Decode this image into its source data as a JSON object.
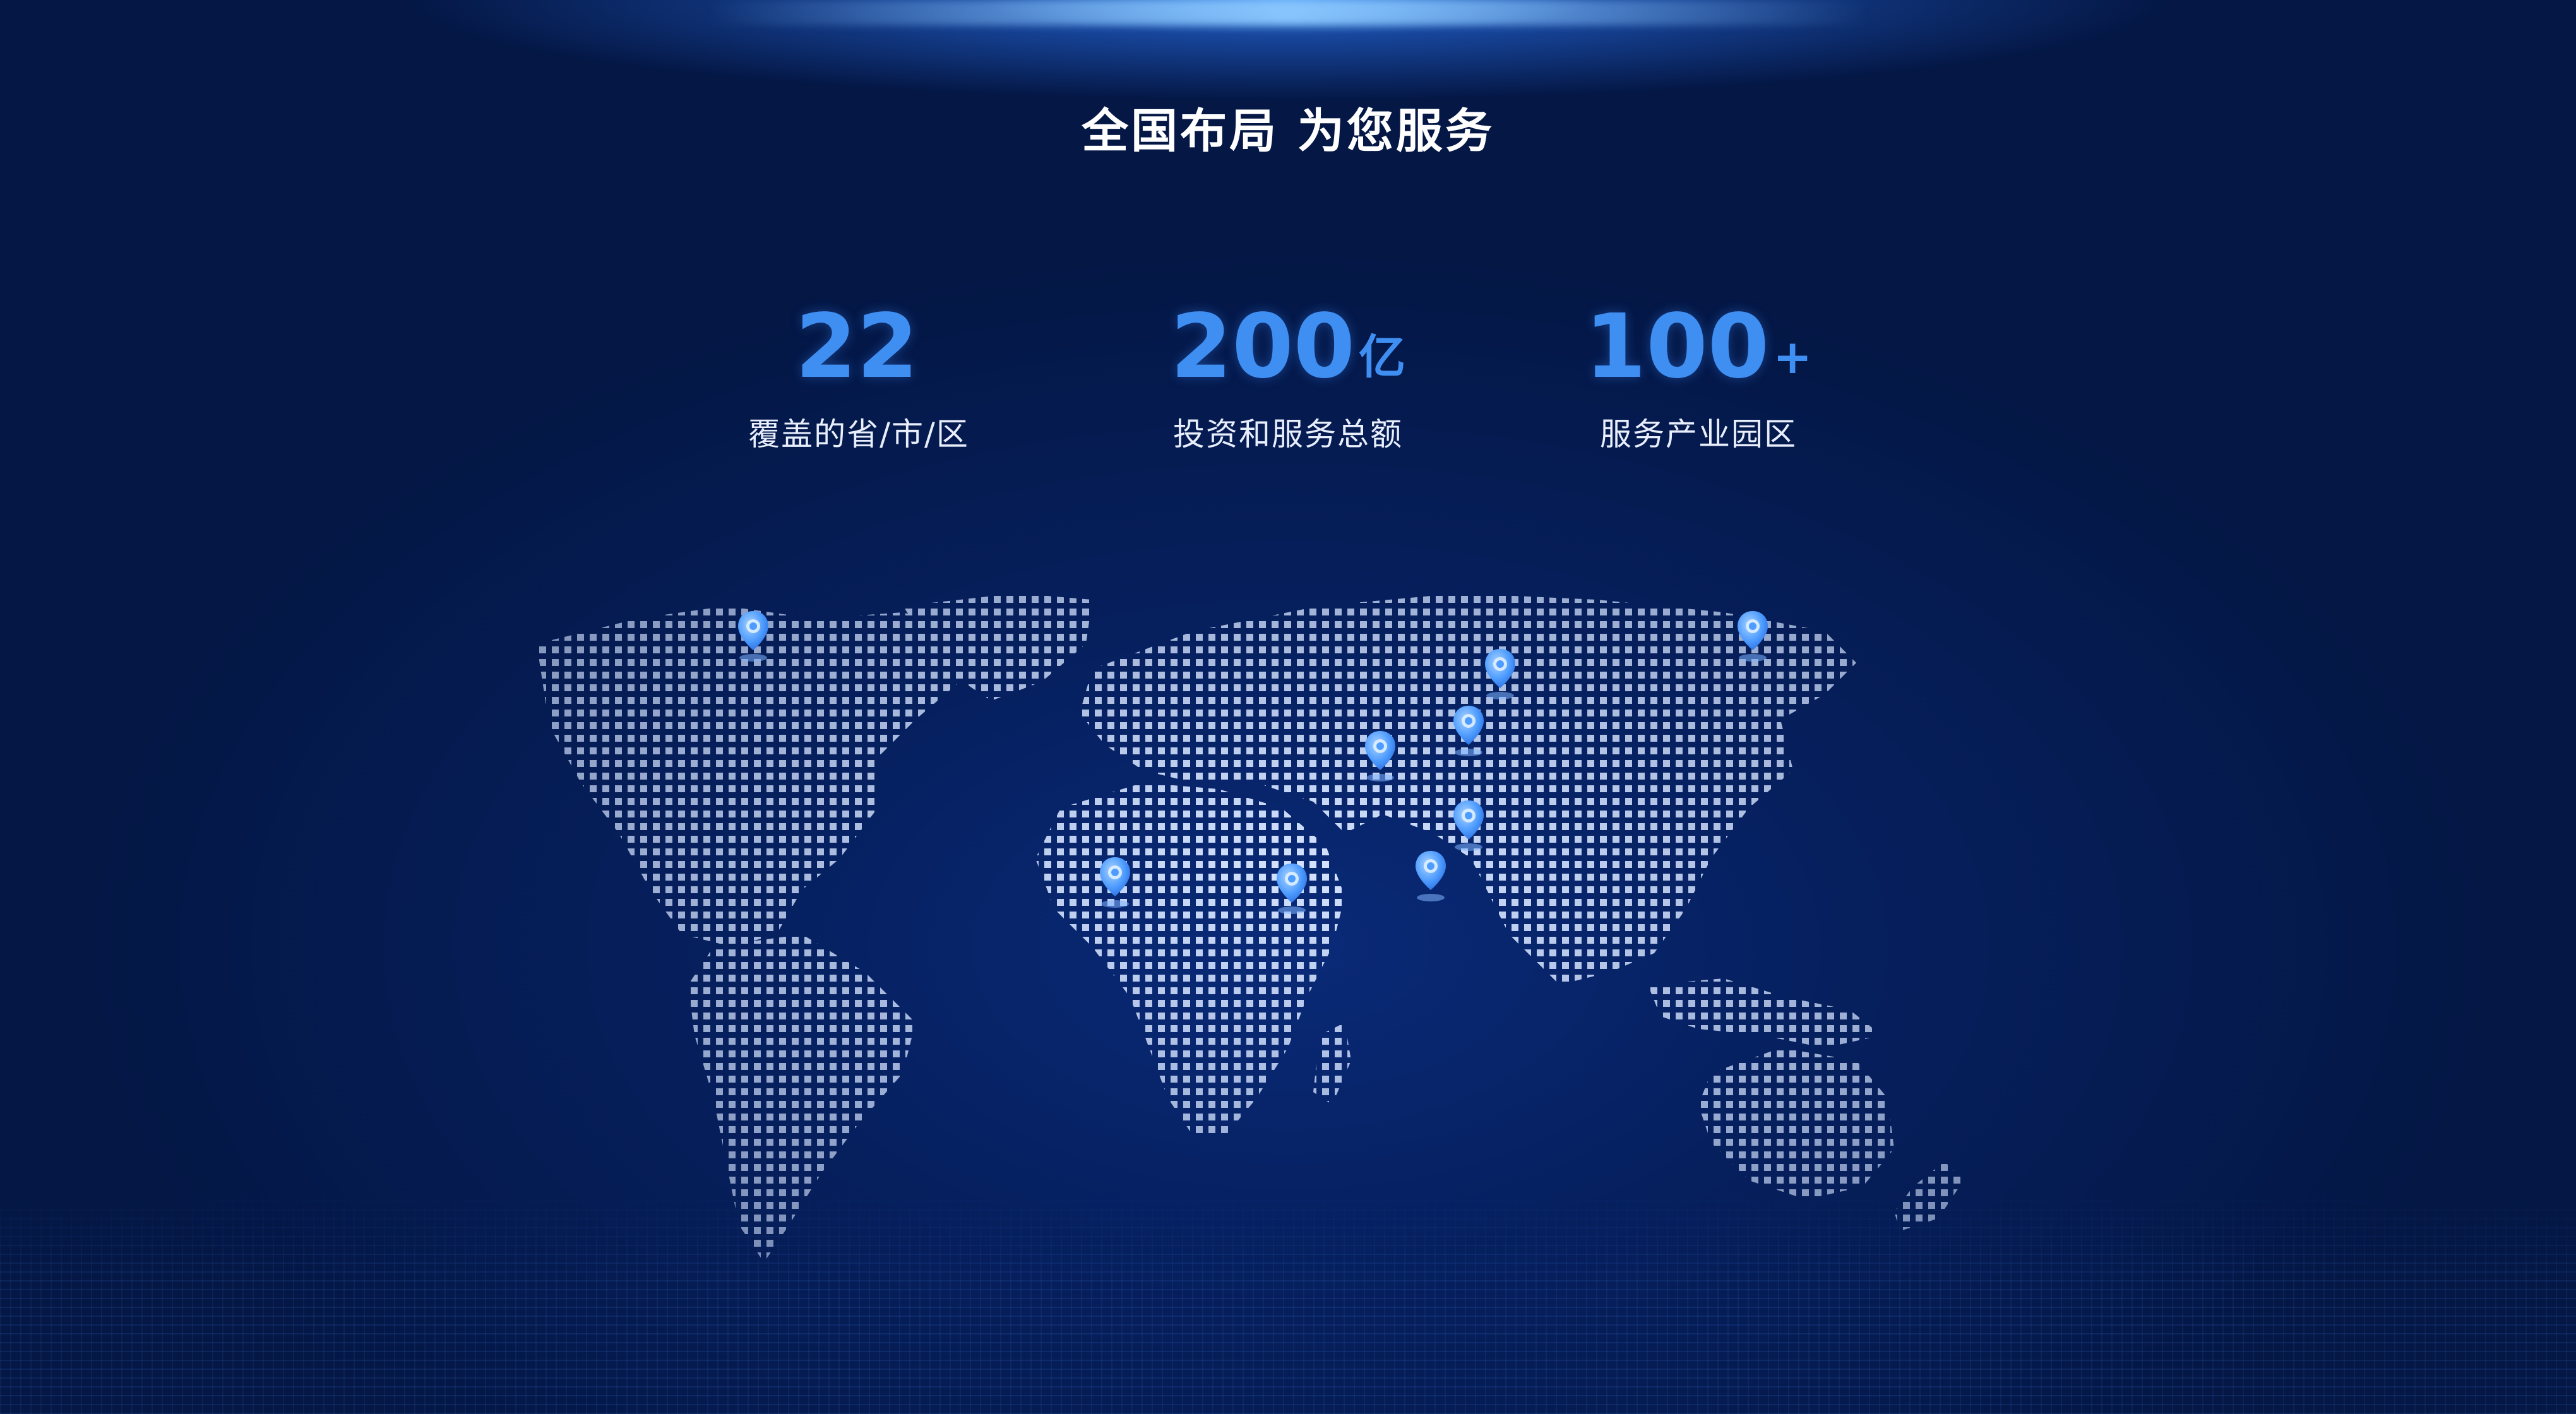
{
  "title": "全国布局  为您服务",
  "stats": [
    {
      "value": "22",
      "unit": "",
      "label": "覆盖的省/市/区"
    },
    {
      "value": "200",
      "unit": "亿",
      "label": "投资和服务总额"
    },
    {
      "value": "100",
      "unit": "+",
      "label": "服务产业园区"
    }
  ],
  "colors": {
    "background": "#051a52",
    "accent": "#3f8ef2",
    "map_dots": "#cfe0ff",
    "marker": "#5aa6ff"
  },
  "icons": {
    "marker": "location-pin-icon"
  }
}
